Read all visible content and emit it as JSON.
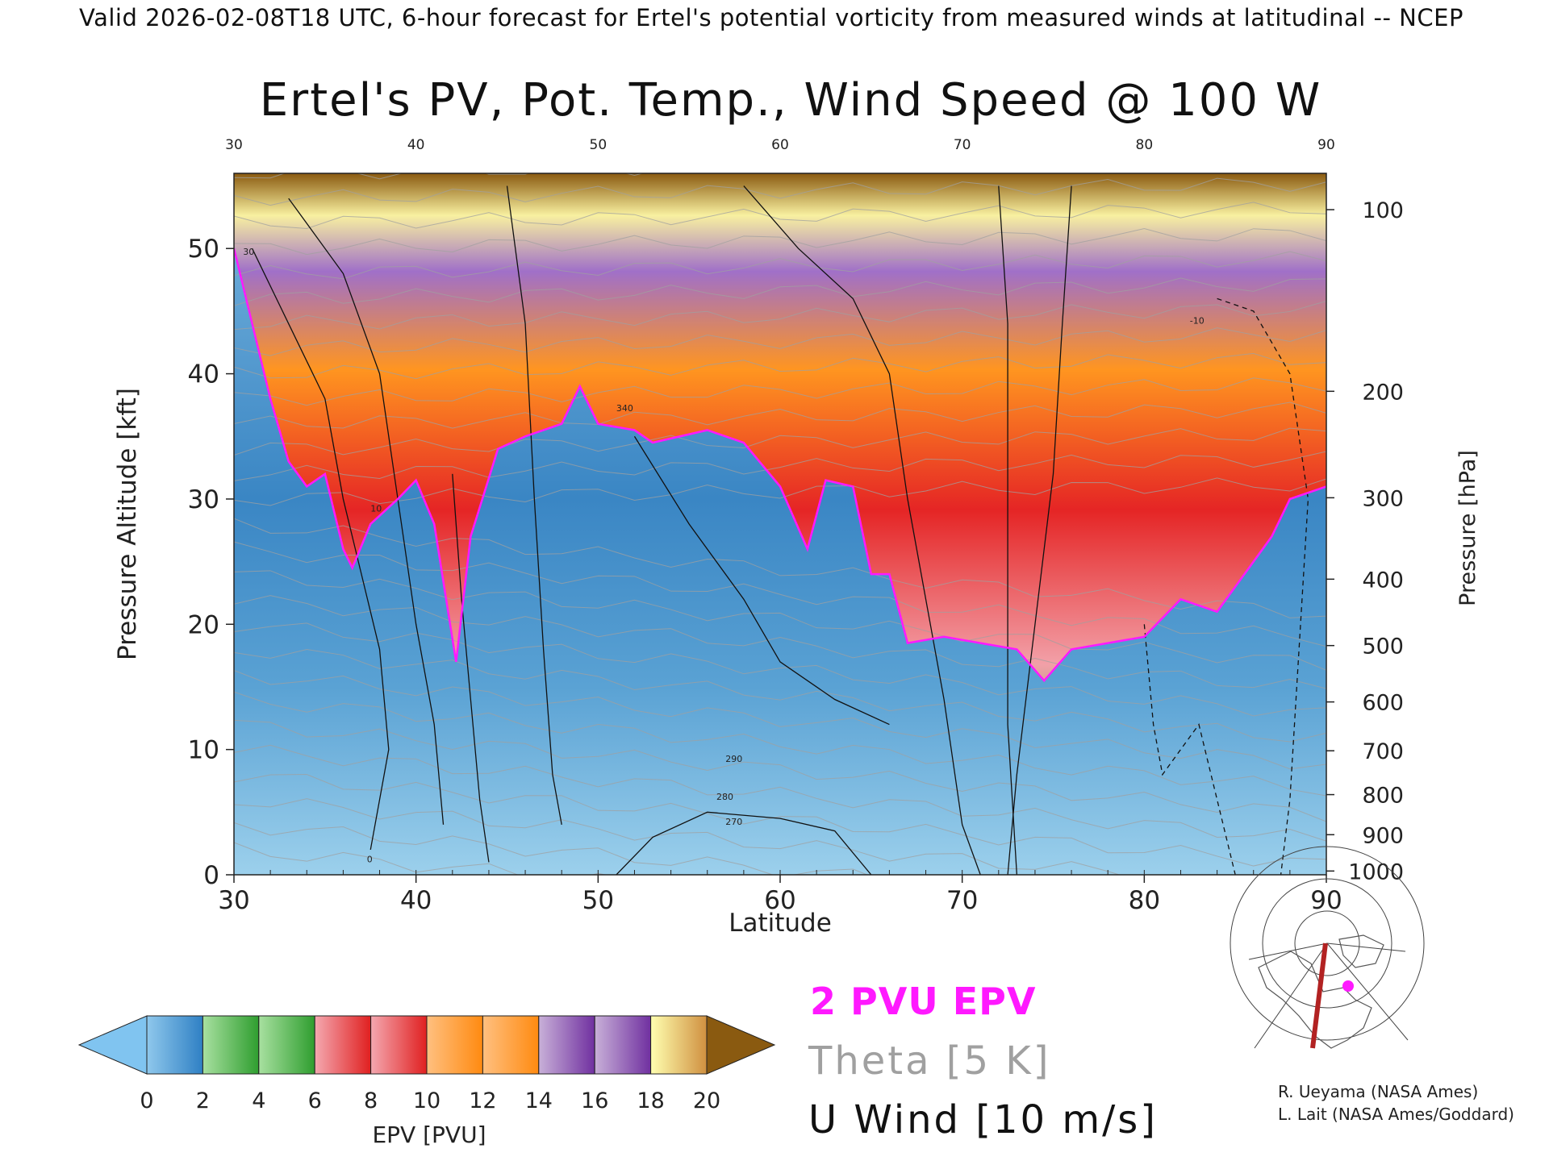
{
  "header": {
    "text": "Valid 2026-02-08T18 UTC, 6-hour forecast for Ertel's potential vorticity from measured winds at latitudinal -- NCEP"
  },
  "chart_data": {
    "type": "heatmap",
    "title": "Ertel's PV, Pot. Temp., Wind Speed @ 100 W",
    "xlabel": "Latitude",
    "ylabel": "Pressure Altitude [kft]",
    "ylabel_right": "Pressure [hPa]",
    "x_range": [
      30,
      90
    ],
    "y_range": [
      0,
      56
    ],
    "x_ticks": [
      "30",
      "40",
      "50",
      "60",
      "70",
      "80",
      "90"
    ],
    "x_ticks_top": [
      "30",
      "40",
      "50",
      "60",
      "70",
      "80",
      "90"
    ],
    "y_ticks": [
      {
        "value": 0,
        "label": "0"
      },
      {
        "value": 10,
        "label": "10"
      },
      {
        "value": 20,
        "label": "20"
      },
      {
        "value": 30,
        "label": "30"
      },
      {
        "value": 40,
        "label": "40"
      },
      {
        "value": 50,
        "label": "50"
      }
    ],
    "pressure_ticks": [
      {
        "alt": 53.1,
        "label": "100"
      },
      {
        "alt": 38.6,
        "label": "200"
      },
      {
        "alt": 30.1,
        "label": "300"
      },
      {
        "alt": 23.6,
        "label": "400"
      },
      {
        "alt": 18.3,
        "label": "500"
      },
      {
        "alt": 13.8,
        "label": "600"
      },
      {
        "alt": 9.9,
        "label": "700"
      },
      {
        "alt": 6.4,
        "label": "800"
      },
      {
        "alt": 3.2,
        "label": "900"
      },
      {
        "alt": 0.3,
        "label": "1000"
      }
    ],
    "tropopause_2pvu": [
      {
        "lat": 30,
        "alt": 50
      },
      {
        "lat": 31,
        "alt": 44
      },
      {
        "lat": 32,
        "alt": 38
      },
      {
        "lat": 33,
        "alt": 33
      },
      {
        "lat": 34,
        "alt": 31
      },
      {
        "lat": 35,
        "alt": 32
      },
      {
        "lat": 36,
        "alt": 26
      },
      {
        "lat": 36.5,
        "alt": 24.5
      },
      {
        "lat": 37.5,
        "alt": 28
      },
      {
        "lat": 39,
        "alt": 30
      },
      {
        "lat": 40,
        "alt": 31.5
      },
      {
        "lat": 41,
        "alt": 28
      },
      {
        "lat": 42.2,
        "alt": 17
      },
      {
        "lat": 43,
        "alt": 27
      },
      {
        "lat": 44.5,
        "alt": 34
      },
      {
        "lat": 46,
        "alt": 35
      },
      {
        "lat": 48,
        "alt": 36
      },
      {
        "lat": 49,
        "alt": 39
      },
      {
        "lat": 50,
        "alt": 36
      },
      {
        "lat": 52,
        "alt": 35.5
      },
      {
        "lat": 53,
        "alt": 34.5
      },
      {
        "lat": 56,
        "alt": 35.5
      },
      {
        "lat": 58,
        "alt": 34.5
      },
      {
        "lat": 60,
        "alt": 31
      },
      {
        "lat": 61.5,
        "alt": 26
      },
      {
        "lat": 62.5,
        "alt": 31.5
      },
      {
        "lat": 64,
        "alt": 31
      },
      {
        "lat": 65,
        "alt": 24
      },
      {
        "lat": 66,
        "alt": 24
      },
      {
        "lat": 67,
        "alt": 18.5
      },
      {
        "lat": 69,
        "alt": 19
      },
      {
        "lat": 71,
        "alt": 18.5
      },
      {
        "lat": 73,
        "alt": 18
      },
      {
        "lat": 74.5,
        "alt": 15.5
      },
      {
        "lat": 76,
        "alt": 18
      },
      {
        "lat": 78,
        "alt": 18.5
      },
      {
        "lat": 80,
        "alt": 19
      },
      {
        "lat": 82,
        "alt": 22
      },
      {
        "lat": 84,
        "alt": 21
      },
      {
        "lat": 85,
        "alt": 23
      },
      {
        "lat": 87,
        "alt": 27
      },
      {
        "lat": 88,
        "alt": 30
      },
      {
        "lat": 90,
        "alt": 31
      }
    ],
    "annotations": [
      "30",
      "10",
      "0",
      "-10",
      "340",
      "290",
      "280",
      "270"
    ],
    "colorbar": {
      "label": "EPV [PVU]",
      "ticks": [
        "0",
        "2",
        "4",
        "6",
        "8",
        "10",
        "12",
        "14",
        "16",
        "18",
        "20"
      ],
      "colors": [
        [
          "#8fc8ec",
          "#2f80c4"
        ],
        [
          "#a8e0a0",
          "#2f9e2f"
        ],
        [
          "#a8e0a0",
          "#2f9e2f"
        ],
        [
          "#f4a8b0",
          "#e02020"
        ],
        [
          "#f4a8b0",
          "#e02020"
        ],
        [
          "#ffc080",
          "#ff8a10"
        ],
        [
          "#ffc080",
          "#ff8a10"
        ],
        [
          "#c8b0d8",
          "#7030a0"
        ],
        [
          "#c8b0d8",
          "#7030a0"
        ],
        [
          "#ffffb0",
          "#d09040"
        ]
      ],
      "under_color": "#80c4f0",
      "over_color": "#8a5a10"
    }
  },
  "legend": {
    "epv": "2 PVU EPV",
    "theta": "Theta [5 K]",
    "uwind": "U Wind [10 m/s]"
  },
  "credits": [
    "R. Ueyama (NASA Ames)",
    "L. Lait (NASA Ames/Goddard)"
  ],
  "colors": {
    "tropopause": "#ff19ff",
    "theta": "#a0a0a0",
    "uwind": "#111111",
    "section_line": "#b22222",
    "location_marker": "#ff19ff"
  }
}
